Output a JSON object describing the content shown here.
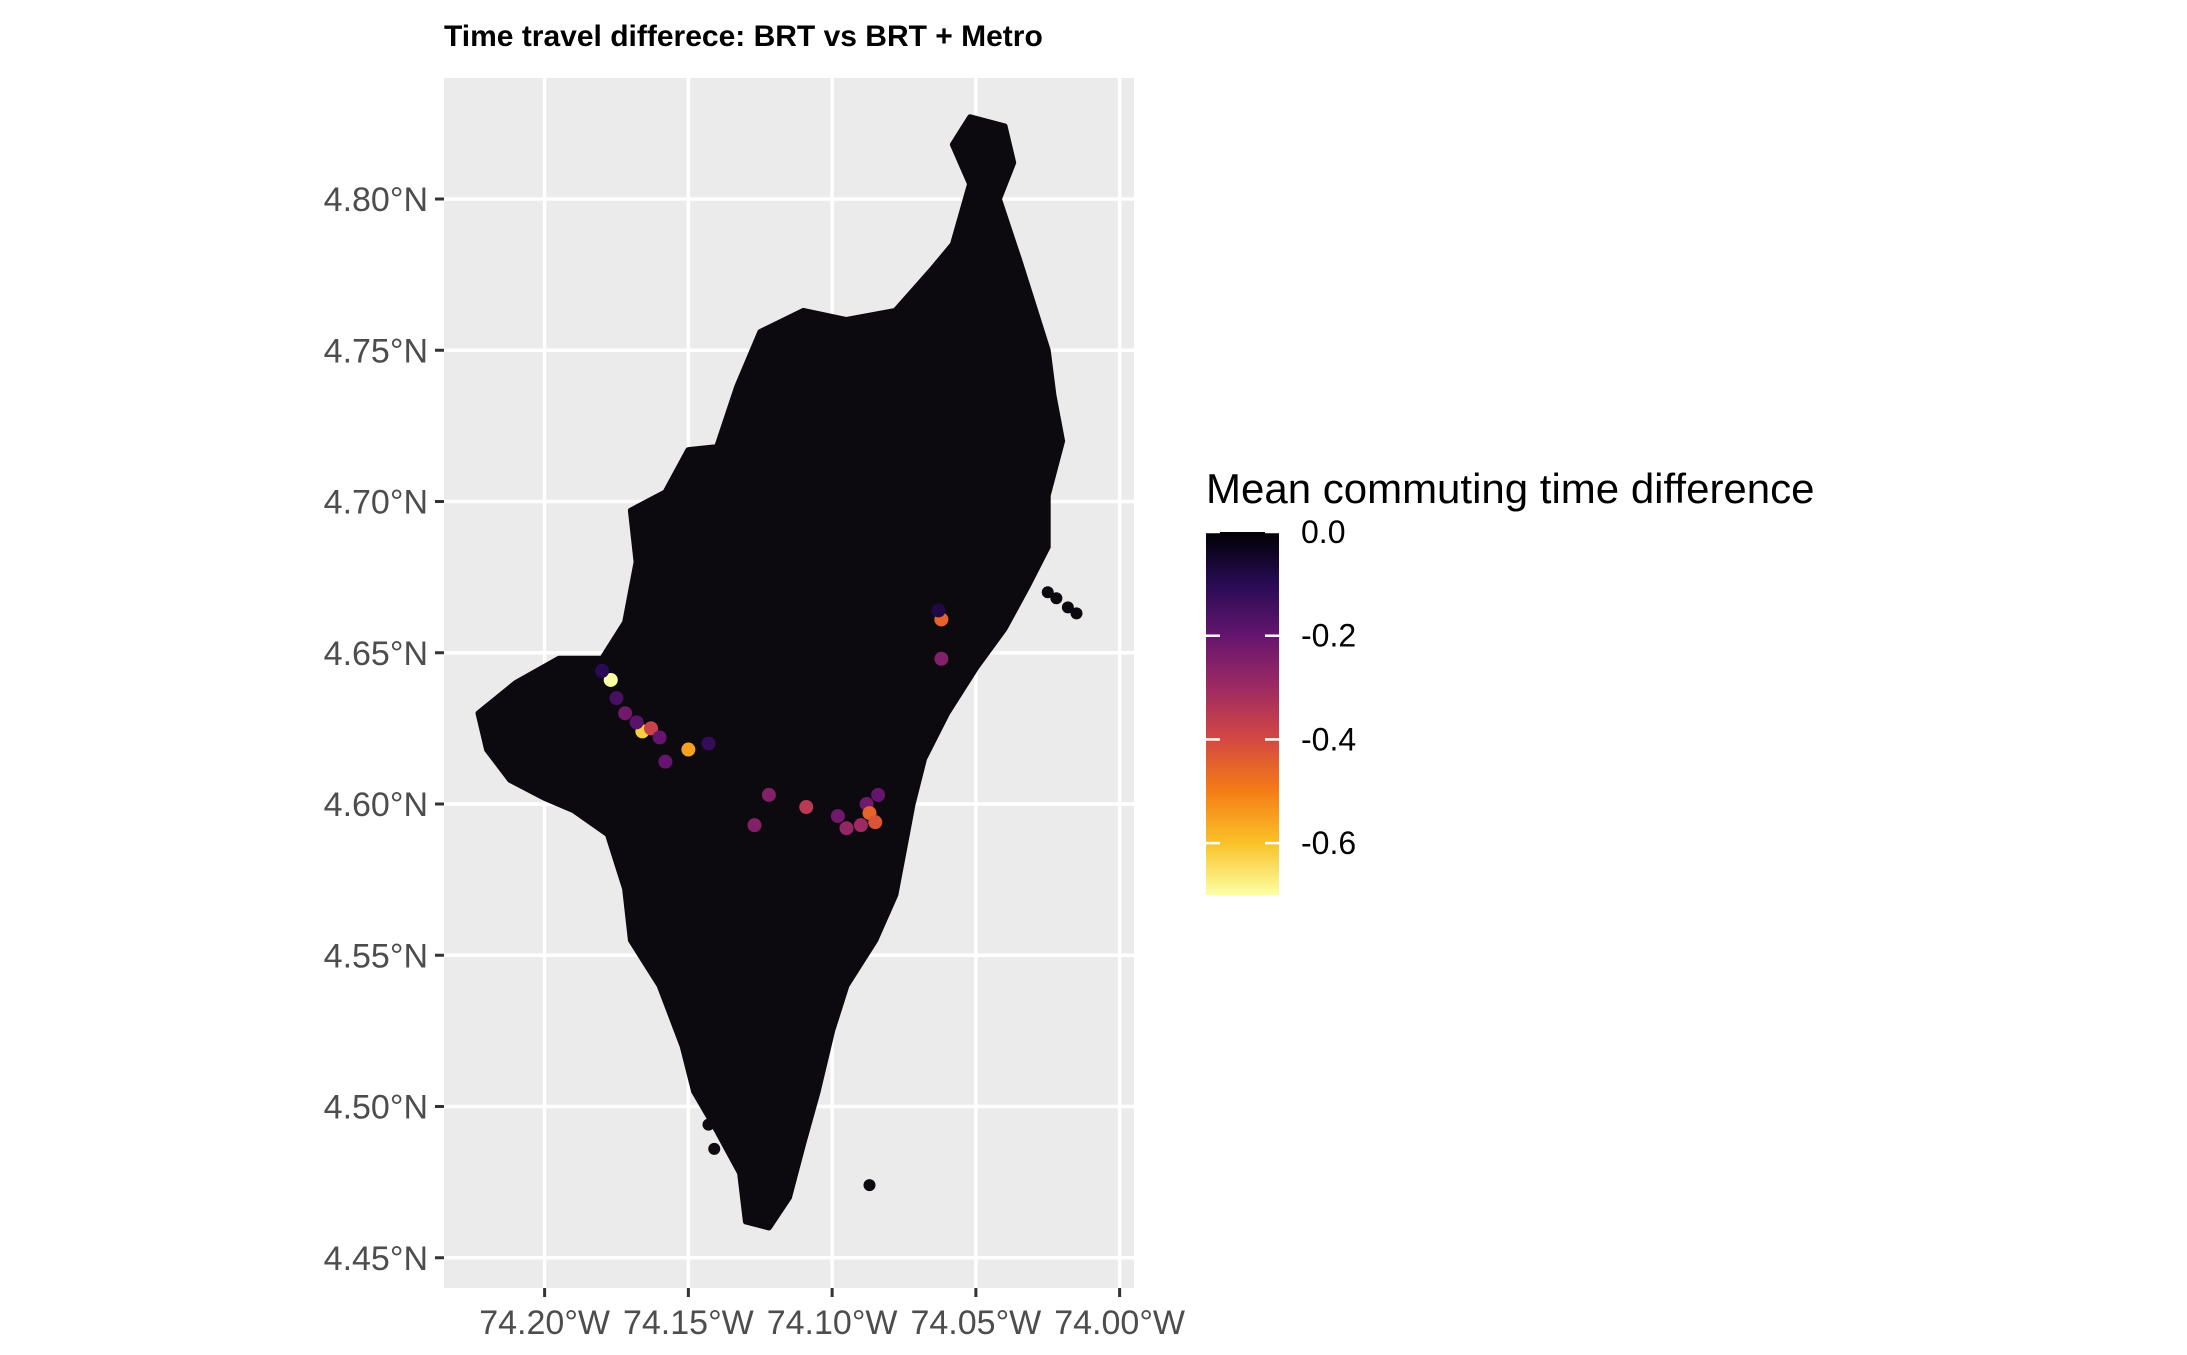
{
  "chart_data": {
    "type": "heatmap",
    "title": "Time travel differece: BRT vs BRT + Metro",
    "xlabel": "",
    "ylabel": "",
    "xlim": [
      -74.235,
      -73.995
    ],
    "ylim": [
      4.44,
      4.84
    ],
    "x_ticks": [
      {
        "value": -74.2,
        "label": "74.20°W"
      },
      {
        "value": -74.15,
        "label": "74.15°W"
      },
      {
        "value": -74.1,
        "label": "74.10°W"
      },
      {
        "value": -74.05,
        "label": "74.05°W"
      },
      {
        "value": -74.0,
        "label": "74.00°W"
      }
    ],
    "y_ticks": [
      {
        "value": 4.45,
        "label": "4.45°N"
      },
      {
        "value": 4.5,
        "label": "4.50°N"
      },
      {
        "value": 4.55,
        "label": "4.55°N"
      },
      {
        "value": 4.6,
        "label": "4.60°N"
      },
      {
        "value": 4.65,
        "label": "4.65°N"
      },
      {
        "value": 4.7,
        "label": "4.70°N"
      },
      {
        "value": 4.75,
        "label": "4.75°N"
      },
      {
        "value": 4.8,
        "label": "4.80°N"
      }
    ],
    "grid": true,
    "panel_background": "#ebebeb",
    "base_fill": "#0d0a0f",
    "legend": {
      "title": "Mean commuting time difference",
      "placement": "right",
      "domain": [
        -0.7,
        0.0
      ],
      "breaks": [
        {
          "value": 0.0,
          "label": "0.0"
        },
        {
          "value": -0.2,
          "label": "-0.2"
        },
        {
          "value": -0.4,
          "label": "-0.4"
        },
        {
          "value": -0.6,
          "label": "-0.6"
        }
      ],
      "colors": [
        "#000004",
        "#280b54",
        "#65156e",
        "#9f2a63",
        "#d44842",
        "#f57d15",
        "#fac228",
        "#fcffa4"
      ]
    },
    "city_outline": [
      [
        -74.223,
        4.63
      ],
      [
        -74.21,
        4.64
      ],
      [
        -74.195,
        4.648
      ],
      [
        -74.18,
        4.648
      ],
      [
        -74.172,
        4.66
      ],
      [
        -74.168,
        4.68
      ],
      [
        -74.17,
        4.697
      ],
      [
        -74.158,
        4.703
      ],
      [
        -74.15,
        4.717
      ],
      [
        -74.14,
        4.718
      ],
      [
        -74.133,
        4.738
      ],
      [
        -74.125,
        4.756
      ],
      [
        -74.11,
        4.763
      ],
      [
        -74.095,
        4.76
      ],
      [
        -74.078,
        4.763
      ],
      [
        -74.065,
        4.777
      ],
      [
        -74.058,
        4.785
      ],
      [
        -74.052,
        4.805
      ],
      [
        -74.058,
        4.818
      ],
      [
        -74.052,
        4.827
      ],
      [
        -74.04,
        4.824
      ],
      [
        -74.037,
        4.812
      ],
      [
        -74.042,
        4.8
      ],
      [
        -74.035,
        4.78
      ],
      [
        -74.03,
        4.765
      ],
      [
        -74.025,
        4.75
      ],
      [
        -74.023,
        4.735
      ],
      [
        -74.02,
        4.72
      ],
      [
        -74.025,
        4.702
      ],
      [
        -74.025,
        4.685
      ],
      [
        -74.032,
        4.672
      ],
      [
        -74.04,
        4.658
      ],
      [
        -74.05,
        4.645
      ],
      [
        -74.06,
        4.63
      ],
      [
        -74.068,
        4.615
      ],
      [
        -74.072,
        4.6
      ],
      [
        -74.075,
        4.585
      ],
      [
        -74.078,
        4.57
      ],
      [
        -74.085,
        4.555
      ],
      [
        -74.095,
        4.54
      ],
      [
        -74.1,
        4.525
      ],
      [
        -74.105,
        4.505
      ],
      [
        -74.11,
        4.488
      ],
      [
        -74.115,
        4.47
      ],
      [
        -74.122,
        4.46
      ],
      [
        -74.13,
        4.462
      ],
      [
        -74.132,
        4.478
      ],
      [
        -74.14,
        4.492
      ],
      [
        -74.148,
        4.505
      ],
      [
        -74.152,
        4.52
      ],
      [
        -74.16,
        4.54
      ],
      [
        -74.17,
        4.555
      ],
      [
        -74.172,
        4.572
      ],
      [
        -74.178,
        4.59
      ],
      [
        -74.19,
        4.598
      ],
      [
        -74.2,
        4.602
      ],
      [
        -74.212,
        4.608
      ],
      [
        -74.22,
        4.618
      ]
    ],
    "outlier_cells": [
      [
        -74.022,
        4.668
      ],
      [
        -74.018,
        4.665
      ],
      [
        -74.015,
        4.663
      ],
      [
        -74.025,
        4.67
      ],
      [
        -74.046,
        4.822
      ],
      [
        -74.043,
        4.812
      ],
      [
        -74.087,
        4.474
      ],
      [
        -74.143,
        4.494
      ],
      [
        -74.141,
        4.486
      ]
    ],
    "highlight_cells": [
      {
        "lon": -74.177,
        "lat": 4.641,
        "value": -0.7
      },
      {
        "lon": -74.166,
        "lat": 4.624,
        "value": -0.62
      },
      {
        "lon": -74.15,
        "lat": 4.618,
        "value": -0.55
      },
      {
        "lon": -74.163,
        "lat": 4.625,
        "value": -0.38
      },
      {
        "lon": -74.172,
        "lat": 4.63,
        "value": -0.22
      },
      {
        "lon": -74.168,
        "lat": 4.627,
        "value": -0.18
      },
      {
        "lon": -74.16,
        "lat": 4.622,
        "value": -0.2
      },
      {
        "lon": -74.158,
        "lat": 4.614,
        "value": -0.2
      },
      {
        "lon": -74.175,
        "lat": 4.635,
        "value": -0.15
      },
      {
        "lon": -74.18,
        "lat": 4.644,
        "value": -0.1
      },
      {
        "lon": -74.143,
        "lat": 4.62,
        "value": -0.12
      },
      {
        "lon": -74.122,
        "lat": 4.603,
        "value": -0.25
      },
      {
        "lon": -74.109,
        "lat": 4.599,
        "value": -0.35
      },
      {
        "lon": -74.127,
        "lat": 4.593,
        "value": -0.25
      },
      {
        "lon": -74.098,
        "lat": 4.596,
        "value": -0.22
      },
      {
        "lon": -74.095,
        "lat": 4.592,
        "value": -0.28
      },
      {
        "lon": -74.088,
        "lat": 4.6,
        "value": -0.22
      },
      {
        "lon": -74.084,
        "lat": 4.603,
        "value": -0.2
      },
      {
        "lon": -74.087,
        "lat": 4.597,
        "value": -0.45
      },
      {
        "lon": -74.085,
        "lat": 4.594,
        "value": -0.42
      },
      {
        "lon": -74.09,
        "lat": 4.593,
        "value": -0.3
      },
      {
        "lon": -74.062,
        "lat": 4.661,
        "value": -0.45
      },
      {
        "lon": -74.062,
        "lat": 4.648,
        "value": -0.25
      },
      {
        "lon": -74.063,
        "lat": 4.664,
        "value": -0.08
      }
    ]
  }
}
